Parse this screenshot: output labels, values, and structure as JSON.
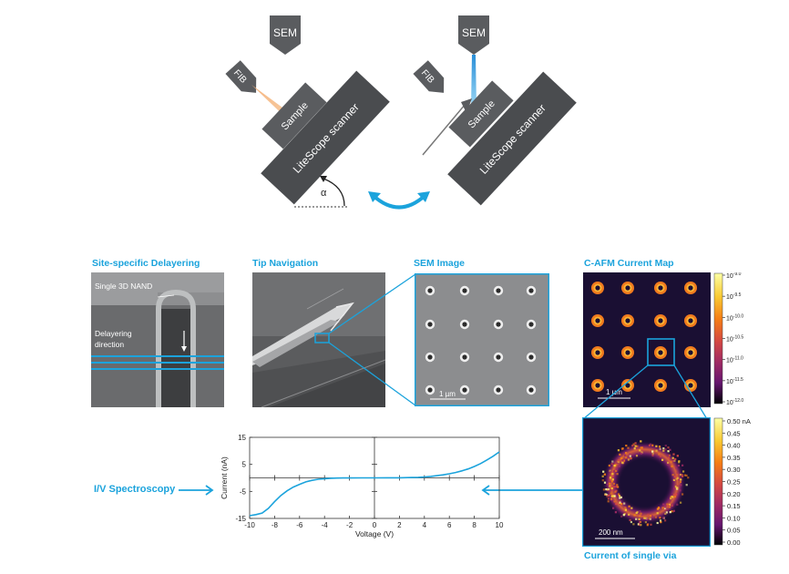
{
  "setup": {
    "left": {
      "sem_label": "SEM",
      "fib_label": "FIB",
      "sample_label": "Sample",
      "scanner_label": "LiteScope scanner",
      "angle_label": "α"
    },
    "right": {
      "sem_label": "SEM",
      "fib_label": "FIB",
      "sample_label": "Sample",
      "scanner_label": "LiteScope scanner"
    }
  },
  "panels": {
    "delayering": {
      "title": "Site-specific Delayering",
      "nand_label": "Single 3D NAND",
      "direction_label_1": "Delayering",
      "direction_label_2": "direction"
    },
    "tip_navigation": {
      "title": "Tip Navigation"
    },
    "sem_image": {
      "title": "SEM Image",
      "scalebar": "1 µm"
    },
    "cafm": {
      "title": "C-AFM Current Map",
      "scalebar": "1 µm",
      "colorbar_ticks": [
        "10",
        "10",
        "10",
        "10",
        "10",
        "10",
        "10"
      ],
      "colorbar_exponents": [
        "-9.0",
        "-9.5",
        "-10.0",
        "-10.5",
        "-11.0",
        "-11.5",
        "-12.0"
      ]
    },
    "single_via": {
      "title": "Current of single via",
      "scalebar": "200 nm",
      "colorbar_ticks": [
        "0.50 nA",
        "0.45",
        "0.40",
        "0.35",
        "0.30",
        "0.25",
        "0.20",
        "0.15",
        "0.10",
        "0.05",
        "0.00"
      ]
    },
    "iv": {
      "label": "I/V Spectroscopy"
    }
  },
  "colors": {
    "accent": "#1ba3dc",
    "dark_block": "#4a4c4f"
  },
  "chart_data": {
    "type": "line",
    "xlabel": "Voltage (V)",
    "ylabel": "Current (nA)",
    "xlim": [
      -10,
      10
    ],
    "ylim": [
      -15,
      15
    ],
    "xticks": [
      "-10",
      "-8",
      "-6",
      "-4",
      "-2",
      "0",
      "2",
      "4",
      "6",
      "8",
      "10"
    ],
    "yticks": [
      "15",
      "5",
      "-5",
      "-15"
    ],
    "series": [
      {
        "x": [
          -10,
          -9.5,
          -9,
          -8.5,
          -8,
          -7.5,
          -7,
          -6.5,
          -6,
          -5.5,
          -5,
          -4.5,
          -4,
          -3.5,
          -3,
          -2.5,
          -2,
          -1,
          0,
          1,
          2,
          3,
          3.5,
          4,
          4.5,
          5,
          5.5,
          6,
          6.5,
          7,
          7.5,
          8,
          8.5,
          9,
          9.5,
          10
        ],
        "y": [
          -14.0,
          -13.6,
          -13.0,
          -11.3,
          -8.8,
          -6.5,
          -4.8,
          -3.4,
          -2.4,
          -1.5,
          -0.9,
          -0.5,
          -0.3,
          -0.15,
          -0.08,
          -0.04,
          -0.02,
          0,
          0,
          0.02,
          0.05,
          0.12,
          0.2,
          0.35,
          0.55,
          0.8,
          1.1,
          1.5,
          2.0,
          2.6,
          3.3,
          4.2,
          5.3,
          6.6,
          8.0,
          9.6
        ]
      }
    ]
  }
}
